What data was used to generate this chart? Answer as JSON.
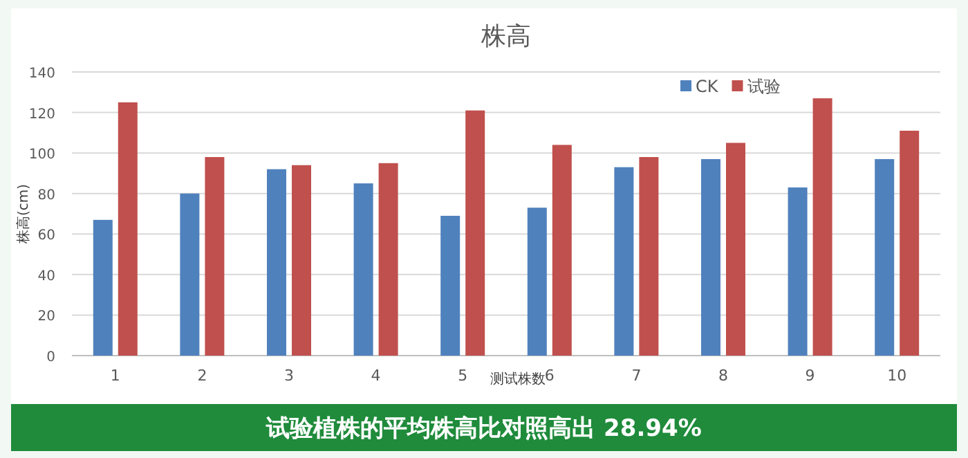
{
  "chart_data": {
    "type": "bar",
    "title": "株高",
    "xlabel": "测试株数",
    "ylabel": "株高(cm)",
    "categories": [
      "1",
      "2",
      "3",
      "4",
      "5",
      "6",
      "7",
      "8",
      "9",
      "10"
    ],
    "series": [
      {
        "name": "CK",
        "color": "#4f81bd",
        "values": [
          67,
          80,
          92,
          85,
          69,
          73,
          93,
          97,
          83,
          97
        ]
      },
      {
        "name": "试验",
        "color": "#c0504d",
        "values": [
          125,
          98,
          94,
          95,
          121,
          104,
          98,
          105,
          127,
          111
        ]
      }
    ],
    "ylim": [
      0,
      140
    ],
    "yticks": [
      0,
      20,
      40,
      60,
      80,
      100,
      120,
      140
    ],
    "grid": "y",
    "legend": "top right",
    "annotations": [
      "试验植株的平均株高比对照高出 28.94%"
    ]
  }
}
